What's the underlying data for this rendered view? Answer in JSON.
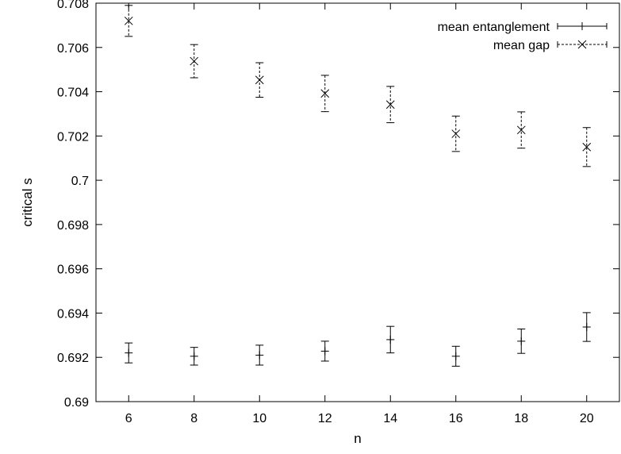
{
  "chart_data": {
    "type": "scatter",
    "title": "",
    "xlabel": "n",
    "ylabel": "critical s",
    "xlim": [
      5,
      21
    ],
    "ylim": [
      0.69,
      0.708
    ],
    "xticks": [
      6,
      8,
      10,
      12,
      14,
      16,
      18,
      20
    ],
    "xtick_labels": [
      "6",
      "8",
      "10",
      "12",
      "14",
      "16",
      "18",
      "20"
    ],
    "yticks": [
      0.69,
      0.692,
      0.694,
      0.696,
      0.698,
      0.7,
      0.702,
      0.704,
      0.706,
      0.708
    ],
    "ytick_labels": [
      "0.69",
      "0.692",
      "0.694",
      "0.696",
      "0.698",
      "0.7",
      "0.702",
      "0.704",
      "0.706",
      "0.708"
    ],
    "grid": false,
    "legend_position": "top-right",
    "series": [
      {
        "name": "mean entanglement",
        "marker": "plus",
        "line_style": "solid",
        "color": "#000000",
        "x": [
          6,
          8,
          10,
          12,
          14,
          16,
          18,
          20
        ],
        "y": [
          0.6922,
          0.69205,
          0.6921,
          0.69228,
          0.6928,
          0.69205,
          0.69273,
          0.69337
        ],
        "y_err": [
          0.00045,
          0.0004,
          0.00045,
          0.00045,
          0.0006,
          0.00045,
          0.00055,
          0.00065
        ]
      },
      {
        "name": "mean gap",
        "marker": "x",
        "line_style": "dashed",
        "color": "#000000",
        "x": [
          6,
          8,
          10,
          12,
          14,
          16,
          18,
          20
        ],
        "y": [
          0.7072,
          0.70538,
          0.70453,
          0.70392,
          0.70342,
          0.7021,
          0.70227,
          0.7015
        ],
        "y_err": [
          0.0007,
          0.00075,
          0.00078,
          0.00082,
          0.00082,
          0.0008,
          0.00082,
          0.00088
        ]
      }
    ]
  }
}
